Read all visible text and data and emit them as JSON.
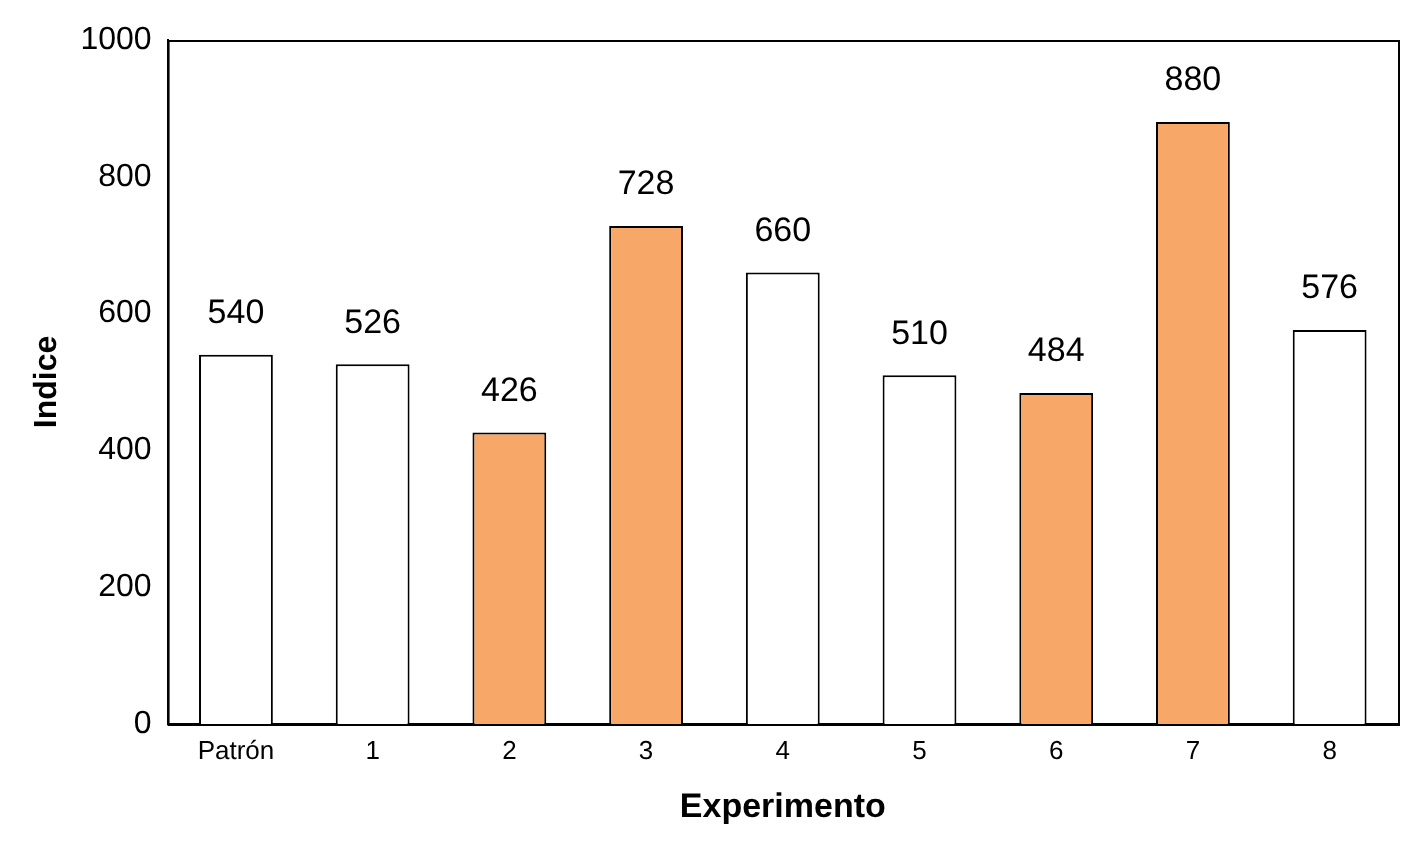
{
  "chart_data": {
    "type": "bar",
    "xlabel": "Experimento",
    "ylabel": "Indice",
    "categories": [
      "Patrón",
      "1",
      "2",
      "3",
      "4",
      "5",
      "6",
      "7",
      "8"
    ],
    "values": [
      540,
      526,
      426,
      728,
      660,
      510,
      484,
      880,
      576
    ],
    "colors": [
      "#ffffff",
      "#ffffff",
      "#f7a868",
      "#f7a868",
      "#ffffff",
      "#ffffff",
      "#f7a868",
      "#f7a868",
      "#ffffff"
    ],
    "ylim": [
      0,
      1000
    ],
    "yticks": [
      0,
      200,
      400,
      600,
      800,
      1000
    ],
    "grid": false,
    "legend": false,
    "data_labels": true
  }
}
